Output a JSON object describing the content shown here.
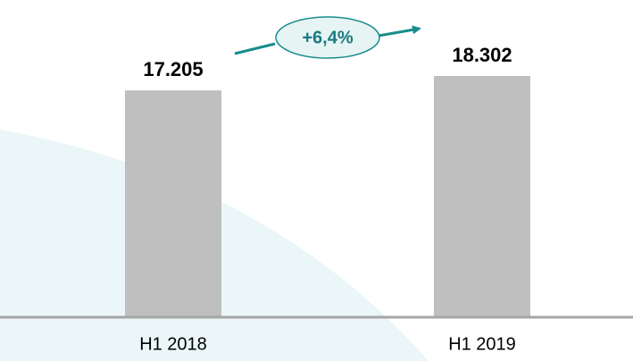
{
  "chart_data": {
    "type": "bar",
    "categories": [
      "H1 2018",
      "H1 2019"
    ],
    "values": [
      17205,
      18302
    ],
    "value_labels": [
      "17.205",
      "18.302"
    ],
    "color": "#bfbfbf",
    "annotation": "+6,4%"
  }
}
